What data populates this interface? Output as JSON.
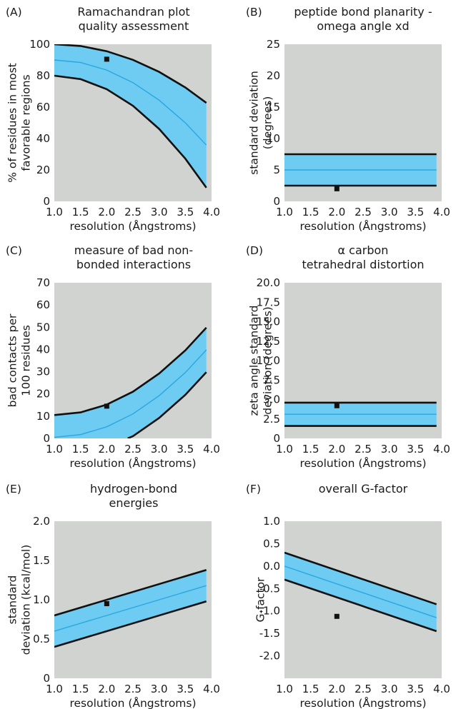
{
  "colors": {
    "plot_background": "#d1d3d0",
    "band_fill": "#6ecbf1",
    "band_edge": "#111111",
    "center_line": "#2aa7e0",
    "marker": "#111111"
  },
  "chart_data": [
    {
      "panel": "(A)",
      "type": "line",
      "title": [
        "Ramachandran plot",
        "quality assessment"
      ],
      "xlabel": "resolution (Ångstroms)",
      "ylabel": [
        "% of residues in most",
        "favorable regions"
      ],
      "xlim": [
        1.0,
        4.0
      ],
      "ylim": [
        0,
        100
      ],
      "xticks": [
        "1.0",
        "1.5",
        "2.0",
        "2.5",
        "3.0",
        "3.5",
        "4.0"
      ],
      "yticks": [
        "0",
        "20",
        "40",
        "60",
        "80",
        "100"
      ],
      "grid": false,
      "series": [
        {
          "role": "upper",
          "x": [
            1.0,
            1.5,
            2.0,
            2.5,
            3.0,
            3.5,
            3.9
          ],
          "y": [
            100,
            98.9,
            95.6,
            90.1,
            82.4,
            72.5,
            62.7
          ]
        },
        {
          "role": "center",
          "x": [
            1.0,
            1.5,
            2.0,
            2.5,
            3.0,
            3.5,
            3.9
          ],
          "y": [
            90,
            88.4,
            83.6,
            75.6,
            64.4,
            50,
            35.8
          ]
        },
        {
          "role": "lower",
          "x": [
            1.0,
            1.5,
            2.0,
            2.5,
            3.0,
            3.5,
            3.9
          ],
          "y": [
            80,
            77.8,
            71.4,
            60.8,
            46.1,
            27.2,
            8.7
          ]
        }
      ],
      "point": {
        "x": 2.0,
        "y": 90.5
      }
    },
    {
      "panel": "(B)",
      "type": "line",
      "title": [
        "peptide bond planarity -",
        "omega angle xd"
      ],
      "xlabel": "resolution (Ångstroms)",
      "ylabel": [
        "standard deviation",
        "(degrees)"
      ],
      "xlim": [
        1.0,
        4.0
      ],
      "ylim": [
        0,
        25
      ],
      "xticks": [
        "1.0",
        "1.5",
        "2.0",
        "2.5",
        "3.0",
        "3.5",
        "4.0"
      ],
      "yticks": [
        "0",
        "5",
        "10",
        "15",
        "20",
        "25"
      ],
      "grid": false,
      "series": [
        {
          "role": "upper",
          "x": [
            1.0,
            3.9
          ],
          "y": [
            7.5,
            7.5
          ]
        },
        {
          "role": "center",
          "x": [
            1.0,
            3.9
          ],
          "y": [
            5.0,
            5.0
          ]
        },
        {
          "role": "lower",
          "x": [
            1.0,
            3.9
          ],
          "y": [
            2.5,
            2.5
          ]
        }
      ],
      "point": {
        "x": 2.0,
        "y": 2.0
      }
    },
    {
      "panel": "(C)",
      "type": "line",
      "title": [
        "measure of bad non-",
        "bonded interactions"
      ],
      "xlabel": "resolution (Ångstroms)",
      "ylabel": [
        "bad contacts per",
        "100 residues"
      ],
      "xlim": [
        1.0,
        4.0
      ],
      "ylim": [
        0,
        70
      ],
      "xticks": [
        "1.0",
        "1.5",
        "2.0",
        "2.5",
        "3.0",
        "3.5",
        "4.0"
      ],
      "yticks": [
        "0",
        "10",
        "20",
        "30",
        "40",
        "50",
        "60",
        "70"
      ],
      "grid": false,
      "series": [
        {
          "role": "upper",
          "x": [
            1.0,
            1.5,
            2.0,
            2.5,
            3.0,
            3.5,
            3.9
          ],
          "y": [
            10.5,
            11.7,
            15.2,
            21,
            29.2,
            39.6,
            49.8
          ]
        },
        {
          "role": "center",
          "x": [
            1.0,
            1.5,
            2.0,
            2.5,
            3.0,
            3.5,
            3.9
          ],
          "y": [
            0.5,
            1.7,
            5.2,
            11,
            19.2,
            29.6,
            39.8
          ]
        },
        {
          "role": "lower",
          "x": [
            2.4,
            2.5,
            3.0,
            3.5,
            3.9
          ],
          "y": [
            0,
            1,
            9.2,
            19.6,
            29.8
          ]
        }
      ],
      "point": {
        "x": 2.0,
        "y": 14.5
      }
    },
    {
      "panel": "(D)",
      "type": "line",
      "title": [
        "α carbon",
        "tetrahedral distortion"
      ],
      "xlabel": "resolution (Ångstroms)",
      "ylabel": [
        "zeta angle standard",
        "deviation (degrees)"
      ],
      "xlim": [
        1.0,
        4.0
      ],
      "ylim": [
        0,
        20
      ],
      "xticks": [
        "1.0",
        "1.5",
        "2.0",
        "2.5",
        "3.0",
        "3.5",
        "4.0"
      ],
      "yticks": [
        "0",
        "2.5",
        "5.0",
        "7.5",
        "10.0",
        "12.5",
        "15.0",
        "17.5",
        "20.0"
      ],
      "grid": false,
      "series": [
        {
          "role": "upper",
          "x": [
            1.0,
            3.9
          ],
          "y": [
            4.6,
            4.6
          ]
        },
        {
          "role": "center",
          "x": [
            1.0,
            3.9
          ],
          "y": [
            3.1,
            3.1
          ]
        },
        {
          "role": "lower",
          "x": [
            1.0,
            3.9
          ],
          "y": [
            1.6,
            1.6
          ]
        }
      ],
      "point": {
        "x": 2.0,
        "y": 4.2
      }
    },
    {
      "panel": "(E)",
      "type": "line",
      "title": [
        "hydrogen-bond",
        "energies"
      ],
      "xlabel": "resolution (Ångstroms)",
      "ylabel": [
        "standard",
        "deviation (kcal/mol)"
      ],
      "xlim": [
        1.0,
        4.0
      ],
      "ylim": [
        0,
        2.0
      ],
      "xticks": [
        "1.0",
        "1.5",
        "2.0",
        "2.5",
        "3.0",
        "3.5",
        "4.0"
      ],
      "yticks": [
        "0",
        "0.5",
        "1.0",
        "1.5",
        "2.0"
      ],
      "grid": false,
      "series": [
        {
          "role": "upper",
          "x": [
            1.0,
            3.9
          ],
          "y": [
            0.8,
            1.38
          ]
        },
        {
          "role": "center",
          "x": [
            1.0,
            3.9
          ],
          "y": [
            0.6,
            1.18
          ]
        },
        {
          "role": "lower",
          "x": [
            1.0,
            3.9
          ],
          "y": [
            0.4,
            0.98
          ]
        }
      ],
      "point": {
        "x": 2.0,
        "y": 0.95
      }
    },
    {
      "panel": "(F)",
      "type": "line",
      "title": [
        "overall G-factor"
      ],
      "xlabel": "resolution (Ångstroms)",
      "ylabel": [
        "G-factor"
      ],
      "xlim": [
        1.0,
        4.0
      ],
      "ylim": [
        -2.5,
        1.0
      ],
      "xticks": [
        "1.0",
        "1.5",
        "2.0",
        "2.5",
        "3.0",
        "3.5",
        "4.0"
      ],
      "yticks": [
        "1.0",
        "0.5",
        "0.0",
        "-0.5",
        "-1.0",
        "-1.5",
        "-2.0"
      ],
      "ytick_values": [
        1.0,
        0.5,
        0.0,
        -0.5,
        -1.0,
        -1.5,
        -2.0
      ],
      "grid": false,
      "series": [
        {
          "role": "upper",
          "x": [
            1.0,
            3.9
          ],
          "y": [
            0.3,
            -0.85
          ]
        },
        {
          "role": "center",
          "x": [
            1.0,
            3.9
          ],
          "y": [
            0.0,
            -1.15
          ]
        },
        {
          "role": "lower",
          "x": [
            1.0,
            3.9
          ],
          "y": [
            -0.3,
            -1.45
          ]
        }
      ],
      "point": {
        "x": 2.0,
        "y": -1.12
      }
    }
  ]
}
